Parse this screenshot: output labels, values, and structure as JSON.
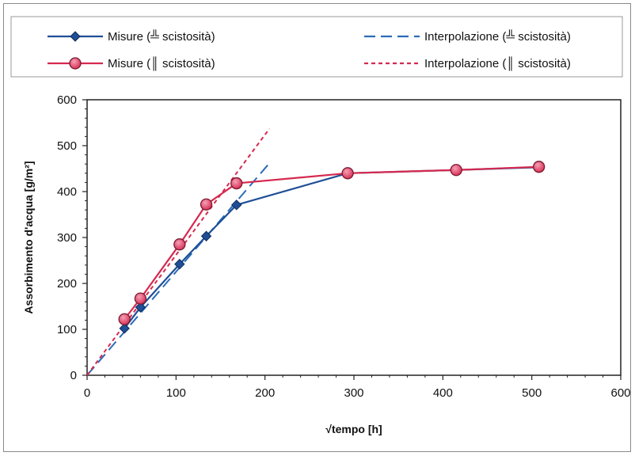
{
  "chart_data": {
    "type": "line",
    "xlabel": "√tempo [h]",
    "ylabel": "Assorbimento d'acqua [g/m²]",
    "xlim": [
      0,
      600
    ],
    "ylim": [
      0,
      600
    ],
    "xticks": [
      0,
      100,
      200,
      300,
      400,
      500,
      600
    ],
    "yticks": [
      0,
      100,
      200,
      300,
      400,
      500,
      600
    ],
    "grid": false,
    "legend_position": "top",
    "series": [
      {
        "name": "Misure (╩ scistosità)",
        "kind": "measure",
        "marker": "diamond",
        "color": "#1f4e96",
        "x": [
          42,
          60,
          104,
          134,
          168,
          293,
          415,
          508
        ],
        "y": [
          102,
          148,
          242,
          303,
          371,
          440,
          447,
          453
        ]
      },
      {
        "name": "Misure (║ scistosità)",
        "kind": "measure",
        "marker": "circle",
        "color": "#d6294f",
        "x": [
          42,
          60,
          104,
          134,
          168,
          293,
          415,
          508
        ],
        "y": [
          122,
          167,
          285,
          372,
          418,
          440,
          447,
          454
        ]
      },
      {
        "name": "Interpolazione (╩ scistosità)",
        "kind": "fit",
        "dash": "long",
        "color": "#2b6cb8",
        "x": [
          0,
          205
        ],
        "y": [
          0,
          462
        ]
      },
      {
        "name": "Interpolazione (║ scistosità)",
        "kind": "fit",
        "dash": "short",
        "color": "#d6294f",
        "x": [
          0,
          205
        ],
        "y": [
          0,
          537
        ]
      }
    ]
  }
}
